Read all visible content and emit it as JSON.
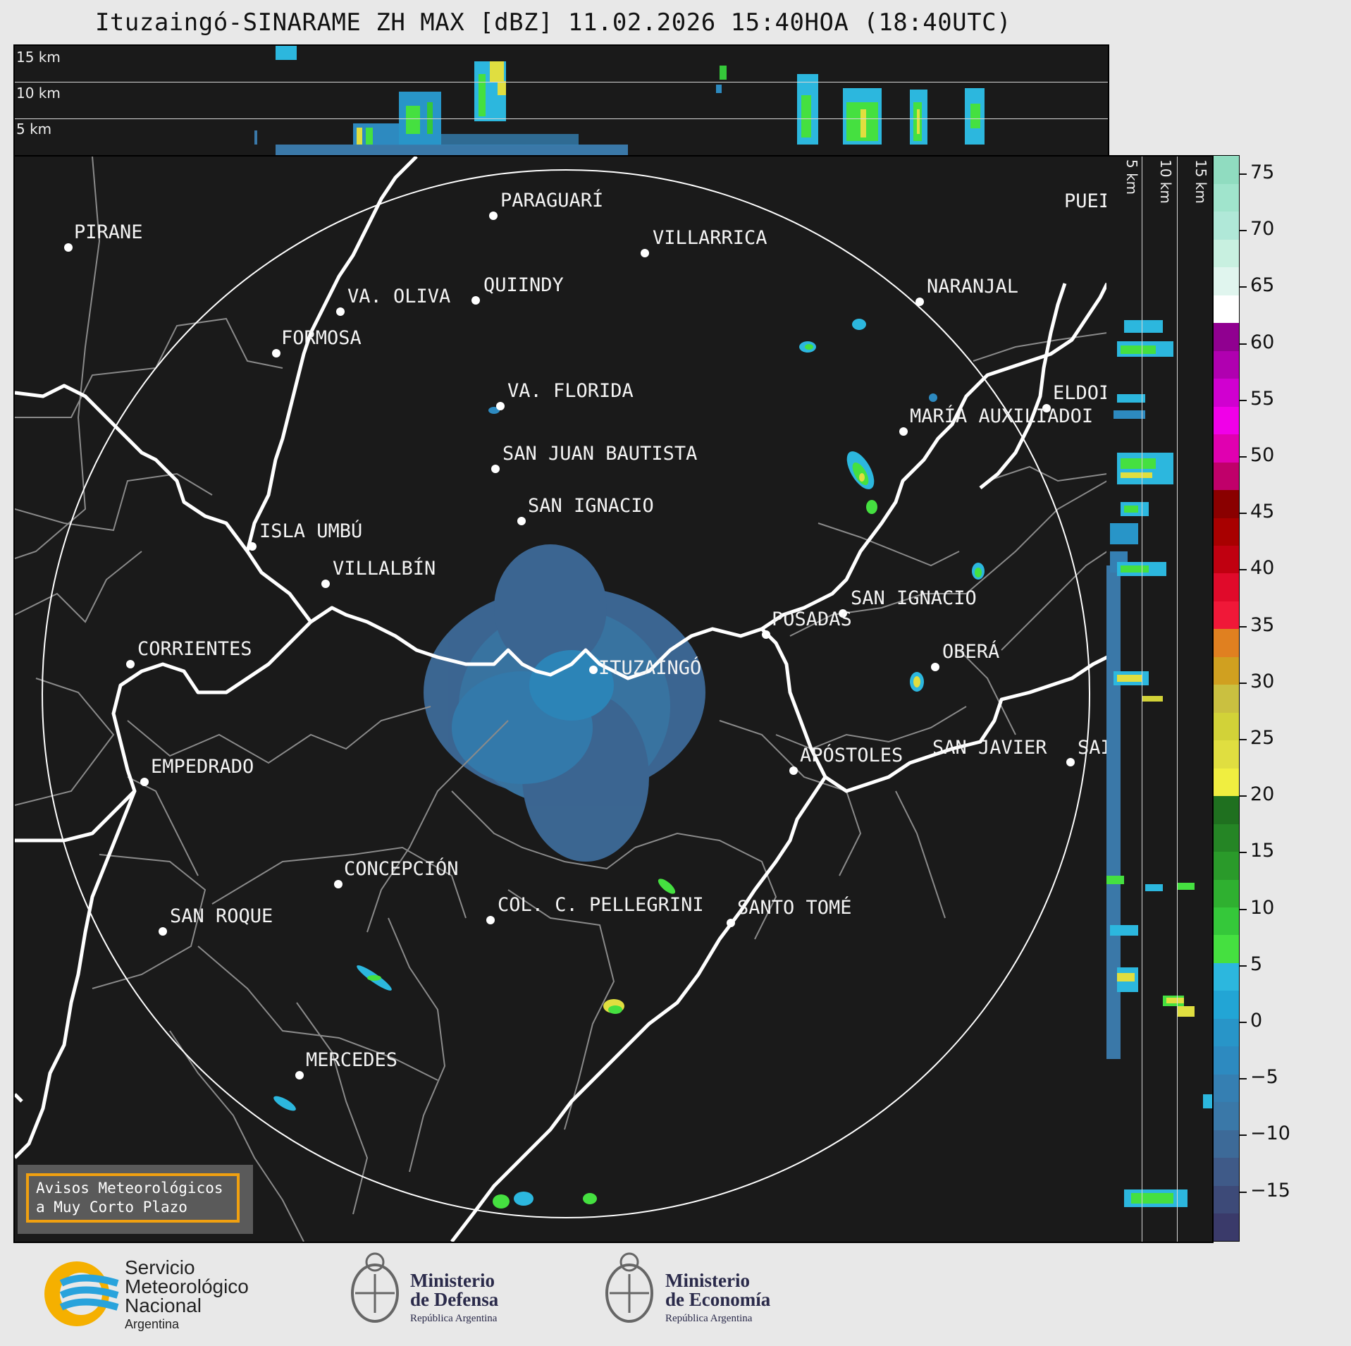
{
  "title": "Ituzaingó-SINARAME ZH MAX [dBZ] 11.02.2026 15:40HOA (18:40UTC)",
  "top_strip": {
    "levels": [
      "15 km",
      "10 km",
      "5 km"
    ]
  },
  "side_strip": {
    "levels": [
      "5 km",
      "10 km",
      "15 km"
    ]
  },
  "colorbar": {
    "ticks": [
      "75",
      "70",
      "65",
      "60",
      "55",
      "50",
      "45",
      "40",
      "35",
      "30",
      "25",
      "20",
      "15",
      "10",
      "5",
      "0",
      "−5",
      "−10",
      "−15"
    ],
    "colors": [
      "#3a3a6a",
      "#3d4a78",
      "#3f5a88",
      "#3d6a98",
      "#3a78a8",
      "#357fb2",
      "#2d8ac0",
      "#2895c8",
      "#22a5d5",
      "#2cb7de",
      "#45e040",
      "#35c83a",
      "#2fb030",
      "#2a9a2a",
      "#258525",
      "#1f701f",
      "#f0ee40",
      "#e0de40",
      "#d2d238",
      "#cac040",
      "#d0a020",
      "#e08020",
      "#f01838",
      "#e00a2a",
      "#c00010",
      "#a80000",
      "#8a0000",
      "#c0006a",
      "#e000b0",
      "#f000e8",
      "#d000d0",
      "#b000b0",
      "#900090",
      "#ffffff",
      "#e0f5ee",
      "#c8f0e0",
      "#b0e8d8",
      "#a0e4cc",
      "#90dcc0"
    ]
  },
  "cities": [
    {
      "name": "PIRANE"
    },
    {
      "name": "PARAGUARÍ"
    },
    {
      "name": "VILLARRICA"
    },
    {
      "name": "QUIINDY"
    },
    {
      "name": "VA. OLIVA"
    },
    {
      "name": "FORMOSA"
    },
    {
      "name": "NARANJAL"
    },
    {
      "name": "PUEI"
    },
    {
      "name": "VA. FLORIDA"
    },
    {
      "name": "ELDOI"
    },
    {
      "name": "MARÍA AUXILIADOI"
    },
    {
      "name": "SAN JUAN BAUTISTA"
    },
    {
      "name": "SAN IGNACIO"
    },
    {
      "name": "ISLA UMBÚ"
    },
    {
      "name": "VILLALBÍN"
    },
    {
      "name": "SAN IGNACIO"
    },
    {
      "name": "POSADAS"
    },
    {
      "name": "CORRIENTES"
    },
    {
      "name": "ITUZAINGÓ"
    },
    {
      "name": "OBERÁ"
    },
    {
      "name": "APÓSTOLES"
    },
    {
      "name": "SAN JAVIER"
    },
    {
      "name": "SAI"
    },
    {
      "name": "EMPEDRADO"
    },
    {
      "name": "CONCEPCIÓN"
    },
    {
      "name": "COL. C. PELLEGRINI"
    },
    {
      "name": "SANTO TOMÉ"
    },
    {
      "name": "SAN ROQUE"
    },
    {
      "name": "MERCEDES"
    }
  ],
  "aviso": {
    "line1": "Avisos Meteorológicos",
    "line2": "a Muy Corto Plazo"
  },
  "footer": {
    "smn": {
      "line1": "Servicio",
      "line2": "Meteorológico",
      "line3": "Nacional",
      "line4": "Argentina"
    },
    "defensa": {
      "line1": "Ministerio",
      "line2": "de Defensa",
      "line3": "República Argentina"
    },
    "economia": {
      "line1": "Ministerio",
      "line2": "de Economía",
      "line3": "República Argentina"
    }
  }
}
